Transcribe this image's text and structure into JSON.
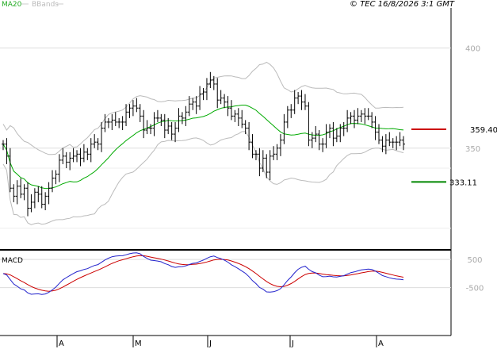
{
  "legend": {
    "ma20": "MA20",
    "bbands": "BBands"
  },
  "copyright": "© TEC 16/8/2026 3:1 GMT",
  "macd_label": "MACD",
  "colors": {
    "ma20": "#00aa00",
    "bbands": "#bbbbbb",
    "bars": "#000000",
    "resistance": "#cc0000",
    "support": "#008800",
    "macd": "#2222cc",
    "signal": "#cc0000"
  },
  "levels": {
    "resistance": "359.40",
    "support": "333.11"
  },
  "chart_data": [
    {
      "type": "ohlc",
      "y_ticks": [
        {
          "value": 350,
          "label": "350"
        },
        {
          "value": 400,
          "label": "400"
        }
      ],
      "ylim": [
        300,
        420
      ],
      "x_ticks": [
        "A",
        "M",
        "J",
        "J",
        "A"
      ],
      "resistance": 359.4,
      "support": 333.11,
      "closes": [
        352,
        346,
        330,
        326,
        331,
        327,
        330,
        320,
        323,
        328,
        327,
        322,
        326,
        330,
        335,
        337,
        344,
        346,
        343,
        345,
        346,
        347,
        345,
        348,
        347,
        352,
        353,
        352,
        360,
        363,
        363,
        364,
        363,
        363,
        363,
        368,
        370,
        371,
        370,
        366,
        359,
        360,
        360,
        365,
        365,
        364,
        359,
        361,
        357,
        360,
        366,
        365,
        368,
        372,
        373,
        371,
        377,
        378,
        382,
        384,
        382,
        374,
        375,
        373,
        370,
        366,
        367,
        365,
        362,
        360,
        353,
        347,
        347,
        340,
        345,
        338,
        346,
        347,
        350,
        354,
        363,
        369,
        369,
        375,
        376,
        373,
        371,
        354,
        355,
        357,
        352,
        352,
        358,
        360,
        355,
        356,
        360,
        360,
        365,
        366,
        364,
        366,
        367,
        366,
        366,
        363,
        358,
        354,
        351,
        354,
        353,
        353,
        353,
        354,
        352
      ]
    },
    {
      "type": "line",
      "name": "MACD",
      "y_ticks": [
        {
          "value": 500,
          "label": "500"
        },
        {
          "value": -500,
          "label": "-500"
        }
      ],
      "ylim": [
        -2200,
        700
      ]
    }
  ]
}
